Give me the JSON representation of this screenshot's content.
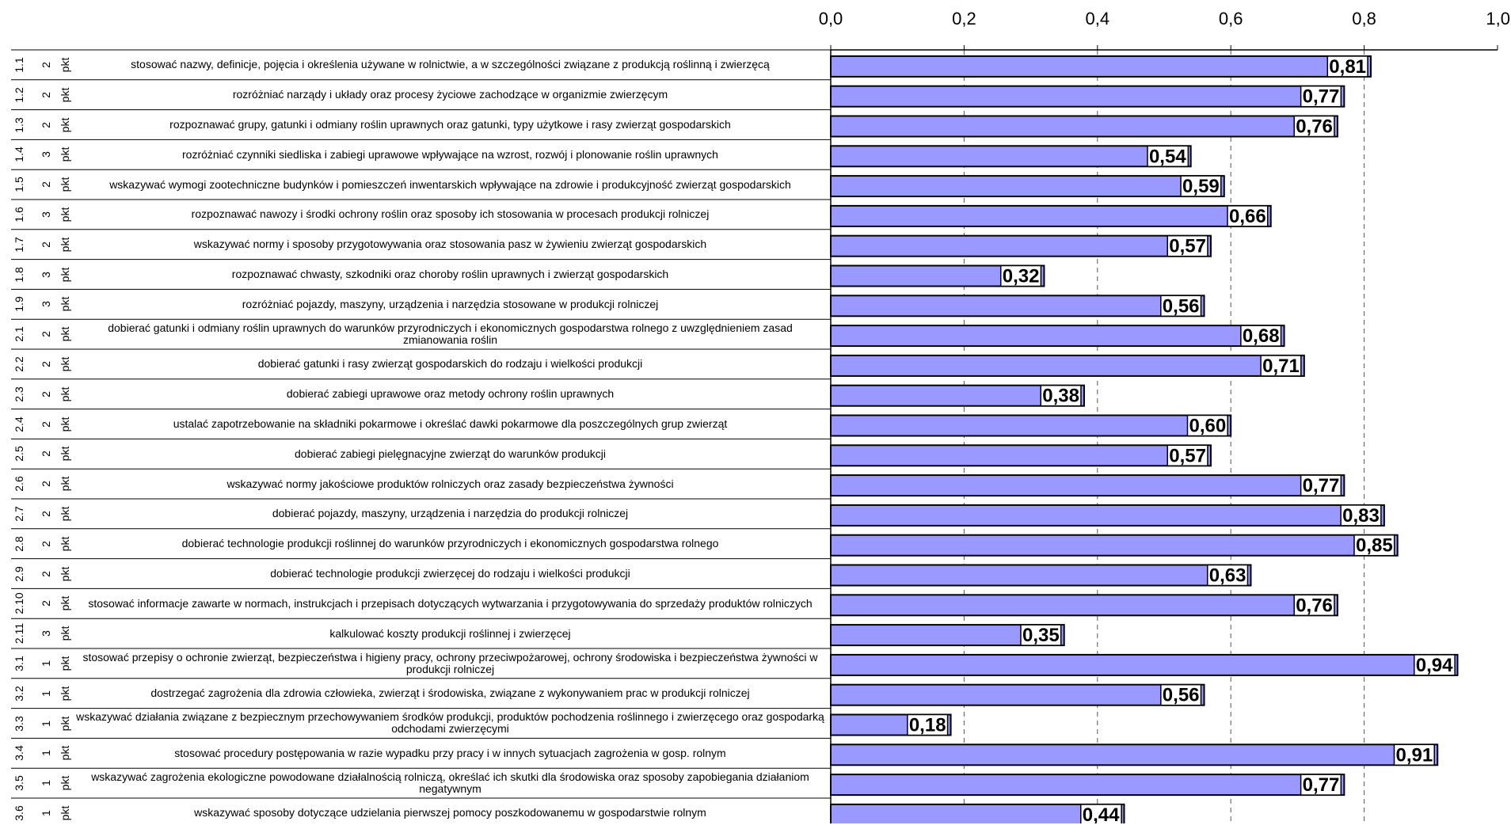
{
  "chart_data": {
    "type": "bar",
    "orientation": "horizontal",
    "xlim": [
      0,
      1.0
    ],
    "x_ticks": [
      "0,0",
      "0,2",
      "0,4",
      "0,6",
      "0,8",
      "1,0"
    ],
    "grid": "vertical dashed",
    "bar_color": "#9999ff",
    "rows": [
      {
        "id": "1.1",
        "points": "2",
        "unit": "pkt",
        "label": "stosować nazwy, definicje, pojęcia i określenia używane w rolnictwie, a w szczególności związane z  produkcją roślinną i zwierzęcą",
        "value": 0.81,
        "value_label": "0,81"
      },
      {
        "id": "1.2",
        "points": "2",
        "unit": "pkt",
        "label": "rozróżniać narządy i układy oraz procesy życiowe zachodzące w organizmie zwierzęcym",
        "value": 0.77,
        "value_label": "0,77"
      },
      {
        "id": "1.3",
        "points": "2",
        "unit": "pkt",
        "label": "rozpoznawać grupy, gatunki i odmiany roślin uprawnych oraz gatunki, typy użytkowe i rasy zwierząt gospodarskich",
        "value": 0.76,
        "value_label": "0,76"
      },
      {
        "id": "1.4",
        "points": "3",
        "unit": "pkt",
        "label": "rozróżniać czynniki siedliska i zabiegi uprawowe wpływające na wzrost, rozwój i plonowanie roślin uprawnych",
        "value": 0.54,
        "value_label": "0,54"
      },
      {
        "id": "1.5",
        "points": "2",
        "unit": "pkt",
        "label": "wskazywać wymogi zootechniczne budynków i pomieszczeń inwentarskich wpływające na zdrowie i produkcyjność zwierząt gospodarskich",
        "value": 0.59,
        "value_label": "0,59"
      },
      {
        "id": "1.6",
        "points": "3",
        "unit": "pkt",
        "label": "rozpoznawać nawozy i środki ochrony roślin oraz sposoby ich stosowania w procesach produkcji rolniczej",
        "value": 0.66,
        "value_label": "0,66"
      },
      {
        "id": "1.7",
        "points": "2",
        "unit": "pkt",
        "label": "wskazywać normy i sposoby przygotowywania oraz stosowania pasz w żywieniu zwierząt gospodarskich",
        "value": 0.57,
        "value_label": "0,57"
      },
      {
        "id": "1.8",
        "points": "3",
        "unit": "pkt",
        "label": "rozpoznawać chwasty, szkodniki oraz choroby roślin uprawnych i zwierząt gospodarskich",
        "value": 0.32,
        "value_label": "0,32"
      },
      {
        "id": "1.9",
        "points": "3",
        "unit": "pkt",
        "label": "rozróżniać pojazdy, maszyny, urządzenia i narzędzia stosowane w produkcji rolniczej",
        "value": 0.56,
        "value_label": "0,56"
      },
      {
        "id": "2.1",
        "points": "2",
        "unit": "pkt",
        "label": "dobierać gatunki i odmiany roślin uprawnych do warunków przyrodniczych i ekonomicznych gospodarstwa rolnego z uwzględnieniem zasad zmianowania roślin",
        "value": 0.68,
        "value_label": "0,68"
      },
      {
        "id": "2.2",
        "points": "2",
        "unit": "pkt",
        "label": "dobierać gatunki i rasy zwierząt gospodarskich do rodzaju i wielkości produkcji",
        "value": 0.71,
        "value_label": "0,71"
      },
      {
        "id": "2.3",
        "points": "2",
        "unit": "pkt",
        "label": "dobierać zabiegi uprawowe oraz metody ochrony roślin uprawnych",
        "value": 0.38,
        "value_label": "0,38"
      },
      {
        "id": "2.4",
        "points": "2",
        "unit": "pkt",
        "label": "ustalać zapotrzebowanie na składniki pokarmowe i określać dawki pokarmowe dla poszczególnych grup zwierząt",
        "value": 0.6,
        "value_label": "0,60"
      },
      {
        "id": "2.5",
        "points": "2",
        "unit": "pkt",
        "label": "dobierać zabiegi pielęgnacyjne zwierząt do warunków produkcji",
        "value": 0.57,
        "value_label": "0,57"
      },
      {
        "id": "2.6",
        "points": "2",
        "unit": "pkt",
        "label": "wskazywać normy jakościowe produktów rolniczych oraz zasady bezpieczeństwa żywności",
        "value": 0.77,
        "value_label": "0,77"
      },
      {
        "id": "2.7",
        "points": "2",
        "unit": "pkt",
        "label": "dobierać pojazdy, maszyny, urządzenia i narzędzia do produkcji rolniczej",
        "value": 0.83,
        "value_label": "0,83"
      },
      {
        "id": "2.8",
        "points": "2",
        "unit": "pkt",
        "label": "dobierać technologie produkcji roślinnej do warunków przyrodniczych i ekonomicznych gospodarstwa rolnego",
        "value": 0.85,
        "value_label": "0,85"
      },
      {
        "id": "2.9",
        "points": "2",
        "unit": "pkt",
        "label": "dobierać technologie produkcji zwierzęcej do rodzaju i wielkości produkcji",
        "value": 0.63,
        "value_label": "0,63"
      },
      {
        "id": "2.10",
        "points": "2",
        "unit": "pkt",
        "label": "stosować informacje zawarte w normach, instrukcjach i przepisach dotyczących wytwarzania i przygotowywania do sprzedaży produktów rolniczych",
        "value": 0.76,
        "value_label": "0,76"
      },
      {
        "id": "2.11",
        "points": "3",
        "unit": "pkt",
        "label": "kalkulować koszty produkcji roślinnej i zwierzęcej",
        "value": 0.35,
        "value_label": "0,35"
      },
      {
        "id": "3.1",
        "points": "1",
        "unit": "pkt",
        "label": "stosować przepisy o ochronie zwierząt, bezpieczeństwa i higieny pracy, ochrony przeciwpożarowej, ochrony środowiska i bezpieczeństwa żywności w produkcji rolniczej",
        "value": 0.94,
        "value_label": "0,94"
      },
      {
        "id": "3.2",
        "points": "1",
        "unit": "pkt",
        "label": "dostrzegać zagrożenia dla zdrowia człowieka, zwierząt i środowiska, związane z wykonywaniem prac w  produkcji rolniczej",
        "value": 0.56,
        "value_label": "0,56"
      },
      {
        "id": "3.3",
        "points": "1",
        "unit": "pkt",
        "label": "wskazywać działania związane z bezpiecznym przechowywaniem środków produkcji, produktów pochodzenia roślinnego i zwierzęcego oraz gospodarką odchodami zwierzęcymi",
        "value": 0.18,
        "value_label": "0,18"
      },
      {
        "id": "3.4",
        "points": "1",
        "unit": "pkt",
        "label": "stosować procedury postępowania w razie wypadku przy pracy i w innych sytuacjach zagrożenia w gosp. rolnym",
        "value": 0.91,
        "value_label": "0,91"
      },
      {
        "id": "3.5",
        "points": "1",
        "unit": "pkt",
        "label": "wskazywać zagrożenia ekologiczne powodowane działalnością rolniczą, określać ich skutki dla środowiska oraz sposoby zapobiegania działaniom negatywnym",
        "value": 0.77,
        "value_label": "0,77"
      },
      {
        "id": "3.6",
        "points": "1",
        "unit": "pkt",
        "label": "wskazywać sposoby dotyczące udzielania pierwszej pomocy poszkodowanemu w gospodarstwie rolnym",
        "value": 0.44,
        "value_label": "0,44"
      }
    ]
  }
}
